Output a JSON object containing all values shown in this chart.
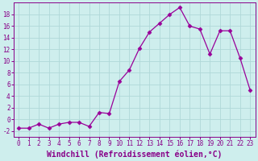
{
  "x": [
    0,
    1,
    2,
    3,
    4,
    5,
    6,
    7,
    8,
    9,
    10,
    11,
    12,
    13,
    14,
    15,
    16,
    17,
    18,
    19,
    20,
    21,
    22,
    23
  ],
  "y": [
    -1.5,
    -1.5,
    -0.8,
    -1.5,
    -0.8,
    -0.5,
    -0.5,
    -1.2,
    1.2,
    1.0,
    6.5,
    8.5,
    12.2,
    15.0,
    16.5,
    18.0,
    19.2,
    16.0,
    15.5,
    11.2,
    15.2,
    15.2,
    10.5,
    5.0
  ],
  "line_color": "#990099",
  "marker": "D",
  "marker_size": 2.5,
  "background_color": "#ceeeed",
  "grid_color": "#b0d8d8",
  "xlabel": "Windchill (Refroidissement éolien,°C)",
  "ylabel": "",
  "xlim": [
    -0.5,
    23.5
  ],
  "ylim": [
    -3,
    20
  ],
  "yticks": [
    -2,
    0,
    2,
    4,
    6,
    8,
    10,
    12,
    14,
    16,
    18
  ],
  "xticks": [
    0,
    1,
    2,
    3,
    4,
    5,
    6,
    7,
    8,
    9,
    10,
    11,
    12,
    13,
    14,
    15,
    16,
    17,
    18,
    19,
    20,
    21,
    22,
    23
  ],
  "tick_color": "#880088",
  "tick_fontsize": 5.5,
  "xlabel_fontsize": 7.0,
  "linewidth": 0.9
}
